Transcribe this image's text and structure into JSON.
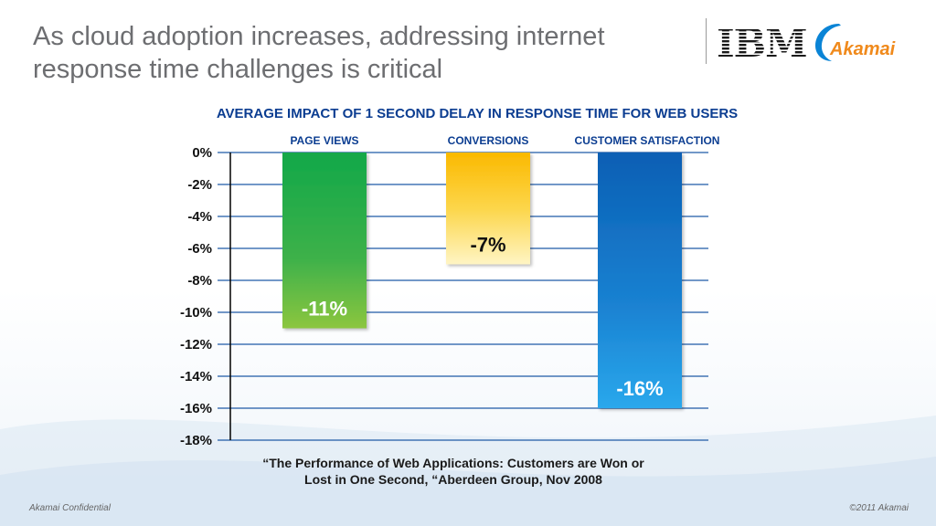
{
  "slide": {
    "title_line1": "As cloud adoption increases, addressing internet",
    "title_line2": "response time challenges is critical",
    "source_line1": "“The Performance of Web Applications: Customers are Won or",
    "source_line2": "Lost in One Second, “Aberdeen Group, Nov 2008",
    "footer_left": "Akamai Confidential",
    "footer_right": "©2011 Akamai",
    "logos": {
      "ibm": "IBM",
      "akamai": "Akamai"
    }
  },
  "chart_data": {
    "type": "bar",
    "title": "AVERAGE IMPACT OF 1 SECOND DELAY IN RESPONSE TIME FOR WEB USERS",
    "categories": [
      "PAGE VIEWS",
      "CONVERSIONS",
      "CUSTOMER SATISFACTION"
    ],
    "values": [
      -11,
      -7,
      -16
    ],
    "value_labels": [
      "-11%",
      "-7%",
      "-16%"
    ],
    "colors": [
      "#22a84a",
      "#f5b800",
      "#0a6cc2"
    ],
    "ylim": [
      -18,
      0
    ],
    "yticks": [
      0,
      -2,
      -4,
      -6,
      -8,
      -10,
      -12,
      -14,
      -16,
      -18
    ],
    "ytick_labels": [
      "0%",
      "-2%",
      "-4%",
      "-6%",
      "-8%",
      "-10%",
      "-12%",
      "-14%",
      "-16%",
      "-18%"
    ],
    "grid": true
  }
}
